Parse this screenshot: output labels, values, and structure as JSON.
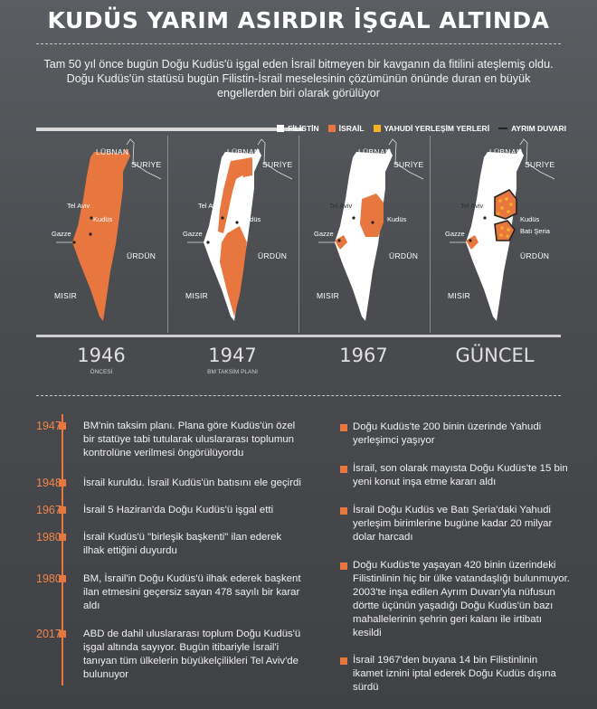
{
  "title": "KUDÜS YARIM ASIRDIR İŞGAL ALTINDA",
  "intro": "Tam 50 yıl önce bugün Doğu Kudüs'ü işgal eden İsrail bitmeyen bir kavganın da fitilini ateşlemiş oldu. Doğu Kudüs'ün statüsü bugün Filistin-İsrail meselesinin çözümünün önünde duran en büyük engellerden biri olarak görülüyor",
  "legend": {
    "filistin": "FİLİSTİN",
    "israil": "İSRAİL",
    "yerlesim": "YAHUDİ YERLEŞİM YERLERİ",
    "duvar": "AYRIM DUVARI"
  },
  "colors": {
    "filistin": "#ffffff",
    "israil": "#e8763f",
    "yerlesim": "#f5b324",
    "duvar": "#222222"
  },
  "place_labels": {
    "lubnan": "LÜBNAN",
    "suriye": "SURİYE",
    "urdun": "ÜRDÜN",
    "misir": "MISIR",
    "telaviv": "Tel Aviv",
    "kudus": "Kudüs",
    "gazze": "Gazze",
    "batiseria": "Batı Şeria"
  },
  "maps": [
    {
      "year": "1946",
      "subtitle": "ÖNCESİ"
    },
    {
      "year": "1947",
      "subtitle": "BM TAKSİM PLANI"
    },
    {
      "year": "1967",
      "subtitle": ""
    },
    {
      "year": "GÜNCEL",
      "subtitle": ""
    }
  ],
  "timeline": [
    {
      "year": "1947",
      "text": "BM'nin taksim planı. Plana göre Kudüs'ün özel bir statüye tabi tutularak uluslararası toplumun kontrolüne verilmesi öngörülüyordu"
    },
    {
      "year": "1948",
      "text": "İsrail kuruldu. İsrail Kudüs'ün batısını ele geçirdi"
    },
    {
      "year": "1967",
      "text": "İsrail 5 Haziran'da Doğu Kudüs'ü işgal etti"
    },
    {
      "year": "1980",
      "text": "İsrail Kudüs'ü \"birleşik başkenti\" ilan ederek ilhak ettiğini duyurdu"
    },
    {
      "year": "1980",
      "text": "BM, İsrail'in Doğu Kudüs'ü ilhak ederek başkent ilan etmesini geçersiz sayan 478 sayılı bir karar aldı"
    },
    {
      "year": "2017",
      "text": "ABD de dahil uluslararası toplum Doğu Kudüs'ü işgal altında sayıyor. Bugün itibariyle İsrail'i tanıyan tüm ülkelerin büyükelçilikleri Tel Aviv'de bulunuyor"
    }
  ],
  "facts": [
    "Doğu Kudüs'te 200 binin üzerinde Yahudi yerleşimci yaşıyor",
    "İsrail, son olarak mayısta Doğu Kudüs'te 15 bin yeni konut inşa etme kararı aldı",
    "İsrail Doğu Kudüs ve Batı Şeria'daki Yahudi yerleşim birimlerine bugüne kadar 20 milyar dolar harcadı",
    "Doğu Kudüs'te yaşayan 420 binin üzerindeki Filistinlinin hiç bir ülke vatandaşlığı bulunmuyor. 2003'te inşa edilen Ayrım Duvarı'yla nüfusun dörtte üçünün yaşadığı Doğu Kudüs'ün bazı mahallelerinin şehrin geri kalanı ile irtibatı kesildi",
    "İsrail 1967'den buyana 14 bin Filistinlinin ikamet iznini iptal ederek Doğu Kudüs dışına sürdü"
  ]
}
